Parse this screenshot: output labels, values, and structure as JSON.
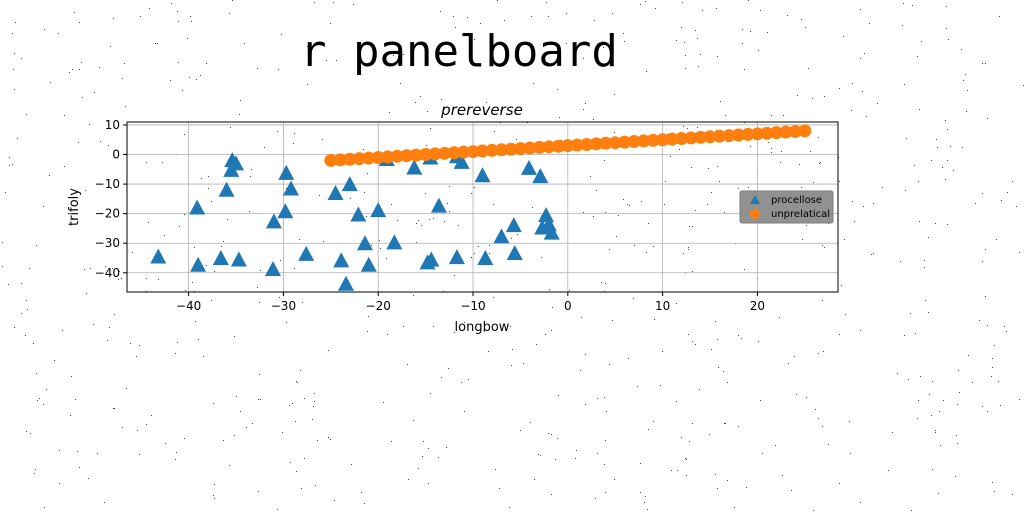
{
  "heading": "r panelboard",
  "chart_data": {
    "type": "scatter",
    "title": "prereverse",
    "xlabel": "longbow",
    "ylabel": "trifoly",
    "xlim": [
      -46.5,
      28.5
    ],
    "ylim": [
      -46.5,
      11.0
    ],
    "xticks": [
      -40,
      -30,
      -20,
      -10,
      0,
      10,
      20
    ],
    "xtick_labels": [
      "−40",
      "−30",
      "−20",
      "−10",
      "0",
      "10",
      "20"
    ],
    "yticks": [
      10,
      0,
      -10,
      -20,
      -30,
      -40
    ],
    "ytick_labels": [
      "10",
      "0",
      "−10",
      "−20",
      "−30",
      "−40"
    ],
    "grid": true,
    "legend": {
      "placement": "right",
      "entries": [
        "procellose",
        "unprelatical"
      ]
    },
    "series": [
      {
        "name": "procellose",
        "marker": "triangle",
        "color": "#1f77b4",
        "points": [
          [
            -43.2,
            -34.5
          ],
          [
            -39.1,
            -17.9
          ],
          [
            -39.0,
            -37.3
          ],
          [
            -36.6,
            -35.0
          ],
          [
            -36.0,
            -11.9
          ],
          [
            -35.4,
            -1.9
          ],
          [
            -35.5,
            -5.2
          ],
          [
            -35.0,
            -3.0
          ],
          [
            -34.7,
            -35.5
          ],
          [
            -31.1,
            -38.7
          ],
          [
            -31.0,
            -22.6
          ],
          [
            -29.7,
            -6.2
          ],
          [
            -29.8,
            -19.2
          ],
          [
            -29.2,
            -11.5
          ],
          [
            -27.6,
            -33.6
          ],
          [
            -24.5,
            -13.0
          ],
          [
            -23.9,
            -35.8
          ],
          [
            -23.4,
            -43.7
          ],
          [
            -23.0,
            -10.0
          ],
          [
            -22.1,
            -20.3
          ],
          [
            -21.4,
            -30.0
          ],
          [
            -21.0,
            -37.3
          ],
          [
            -20.0,
            -18.8
          ],
          [
            -19.1,
            -1.5
          ],
          [
            -18.3,
            -29.7
          ],
          [
            -16.2,
            -4.4
          ],
          [
            -14.8,
            -36.5
          ],
          [
            -14.4,
            -35.5
          ],
          [
            -14.5,
            -1.0
          ],
          [
            -13.6,
            -17.3
          ],
          [
            -11.7,
            -0.6
          ],
          [
            -11.7,
            -34.7
          ],
          [
            -11.2,
            -2.5
          ],
          [
            -9.0,
            -7.0
          ],
          [
            -8.7,
            -35.0
          ],
          [
            -7.0,
            -27.7
          ],
          [
            -5.7,
            -23.9
          ],
          [
            -5.6,
            -33.3
          ],
          [
            -4.1,
            -4.5
          ],
          [
            -2.9,
            -7.3
          ],
          [
            -2.3,
            -20.5
          ],
          [
            -2.7,
            -24.7
          ],
          [
            -2.0,
            -23.6
          ],
          [
            -1.7,
            -26.4
          ]
        ]
      },
      {
        "name": "unprelatical",
        "marker": "circle",
        "color": "#ff7f0e",
        "points": [
          [
            -25.0,
            -2.0
          ],
          [
            -24.0,
            -1.8
          ],
          [
            -23.0,
            -1.6
          ],
          [
            -22.0,
            -1.4
          ],
          [
            -21.0,
            -1.2
          ],
          [
            -20.0,
            -1.0
          ],
          [
            -19.0,
            -0.8
          ],
          [
            -18.0,
            -0.6
          ],
          [
            -17.0,
            -0.4
          ],
          [
            -16.0,
            -0.2
          ],
          [
            -15.0,
            0.0
          ],
          [
            -14.0,
            0.2
          ],
          [
            -13.0,
            0.4
          ],
          [
            -12.0,
            0.6
          ],
          [
            -11.0,
            0.8
          ],
          [
            -10.0,
            1.0
          ],
          [
            -9.0,
            1.2
          ],
          [
            -8.0,
            1.4
          ],
          [
            -7.0,
            1.6
          ],
          [
            -6.0,
            1.8
          ],
          [
            -5.0,
            2.0
          ],
          [
            -4.0,
            2.2
          ],
          [
            -3.0,
            2.4
          ],
          [
            -2.0,
            2.6
          ],
          [
            -1.0,
            2.8
          ],
          [
            0.0,
            3.0
          ],
          [
            1.0,
            3.2
          ],
          [
            2.0,
            3.4
          ],
          [
            3.0,
            3.6
          ],
          [
            4.0,
            3.8
          ],
          [
            5.0,
            4.0
          ],
          [
            6.0,
            4.2
          ],
          [
            7.0,
            4.4
          ],
          [
            8.0,
            4.6
          ],
          [
            9.0,
            4.8
          ],
          [
            10.0,
            5.0
          ],
          [
            11.0,
            5.2
          ],
          [
            12.0,
            5.4
          ],
          [
            13.0,
            5.6
          ],
          [
            14.0,
            5.8
          ],
          [
            15.0,
            6.0
          ],
          [
            16.0,
            6.2
          ],
          [
            17.0,
            6.4
          ],
          [
            18.0,
            6.6
          ],
          [
            19.0,
            6.8
          ],
          [
            20.0,
            7.0
          ],
          [
            21.0,
            7.2
          ],
          [
            22.0,
            7.4
          ],
          [
            23.0,
            7.6
          ],
          [
            24.0,
            7.8
          ],
          [
            25.0,
            8.0
          ]
        ]
      }
    ]
  }
}
